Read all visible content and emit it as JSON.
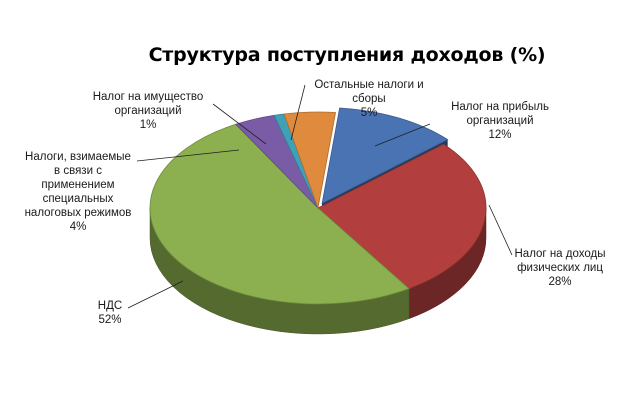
{
  "chart_data": {
    "type": "pie",
    "title": "Структура поступления доходов (%)",
    "three_d": true,
    "legend": "none",
    "slices": [
      {
        "label": "Налог на прибыль организаций",
        "value": 12,
        "value_label": "12%",
        "color": "#4a73b3"
      },
      {
        "label": "Налог на доходы физических лиц",
        "value": 28,
        "value_label": "28%",
        "color": "#b23f3d"
      },
      {
        "label": "НДС",
        "value": 52,
        "value_label": "52%",
        "color": "#8cb04f"
      },
      {
        "label": "Налоги, взимаемые в связи с применением специальных налоговых режимов",
        "value": 4,
        "value_label": "4%",
        "color": "#7a5ca6"
      },
      {
        "label": "Налог на имущество организаций",
        "value": 1,
        "value_label": "1%",
        "color": "#3fa1b8"
      },
      {
        "label": "Остальные налоги и сборы",
        "value": 5,
        "value_label": "5%",
        "color": "#df8a3c"
      }
    ]
  }
}
